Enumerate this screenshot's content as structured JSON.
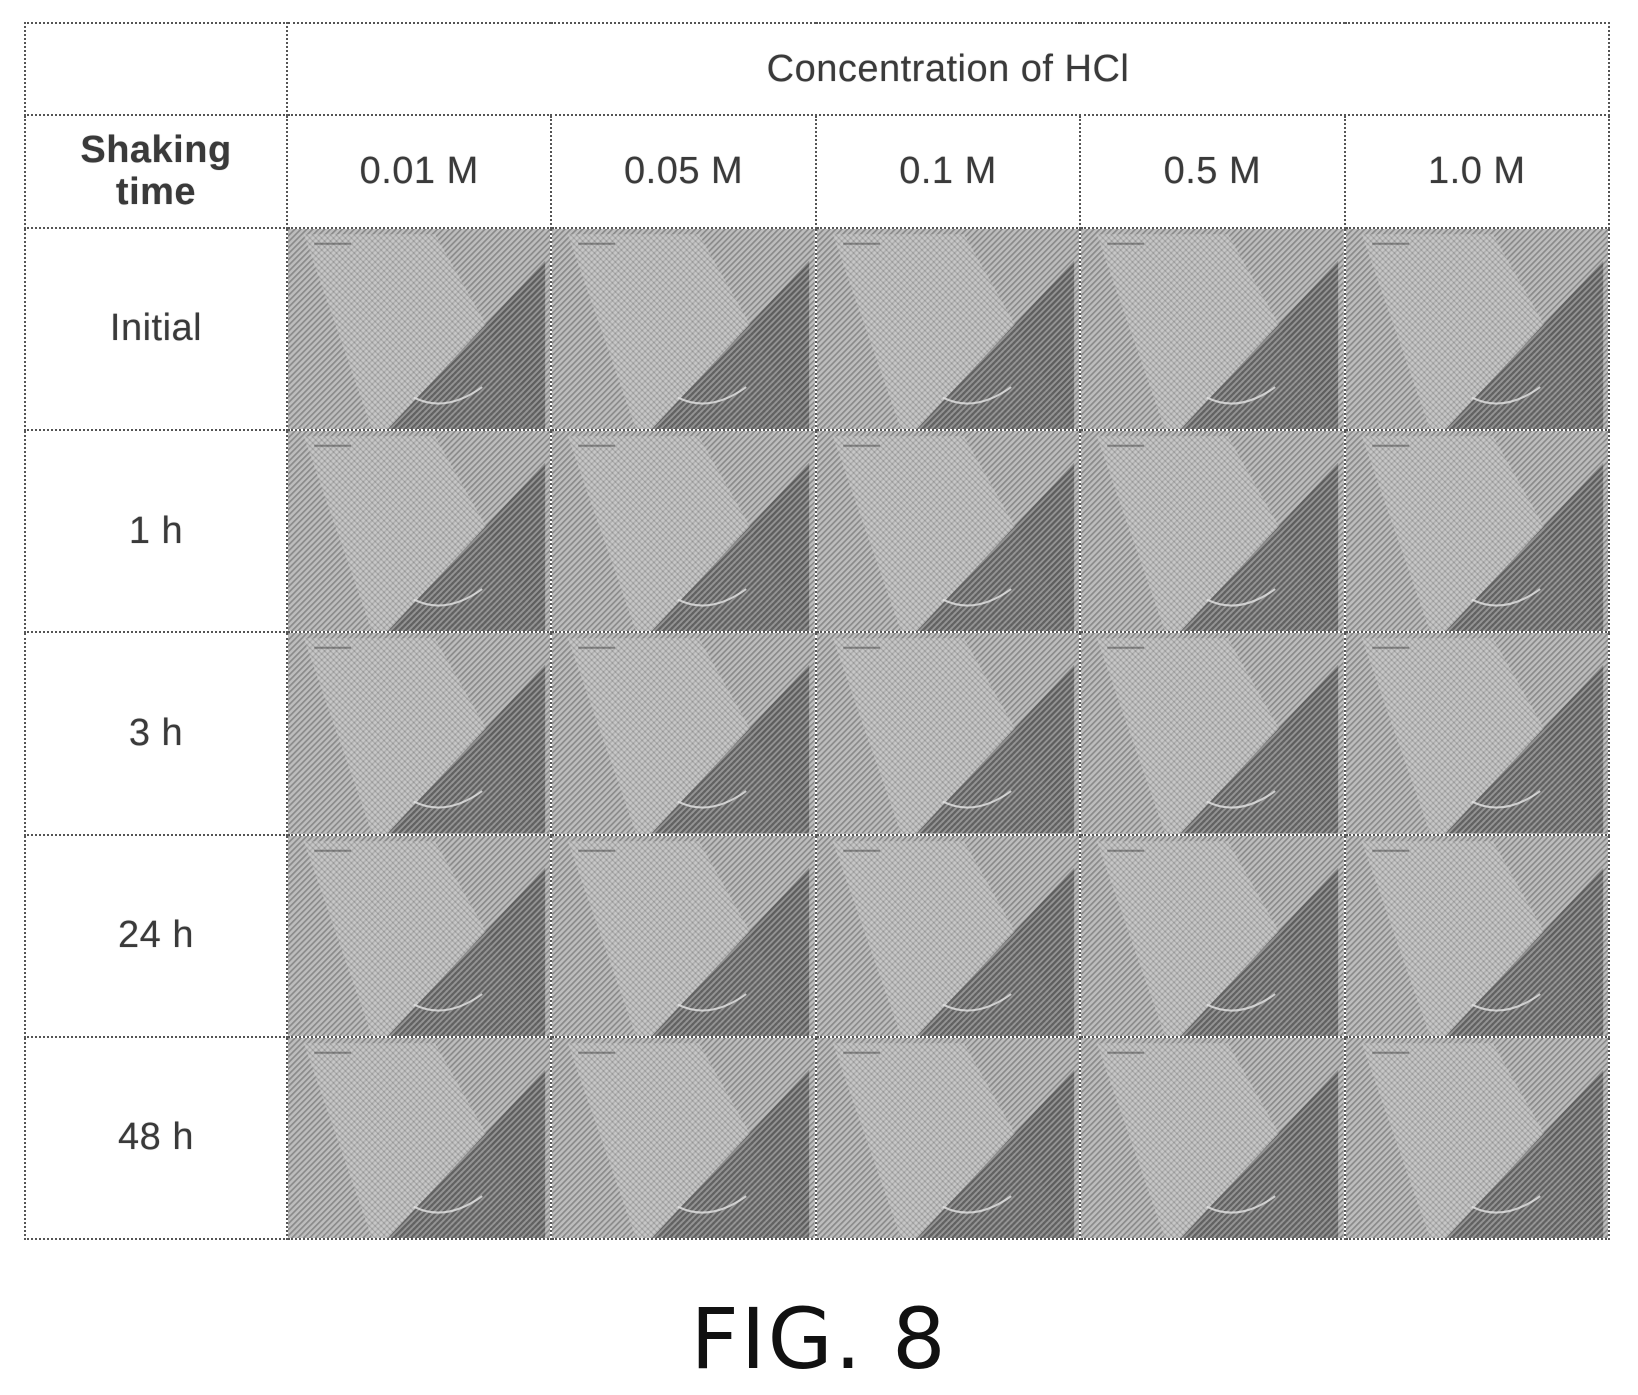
{
  "table": {
    "corner_label_line1": "Shaking",
    "corner_label_line2": "time",
    "group_header": "Concentration of HCl",
    "concentrations": [
      "0.01 M",
      "0.05 M",
      "0.1 M",
      "0.5 M",
      "1.0 M"
    ],
    "rows": [
      "Initial",
      "1 h",
      "3 h",
      "24 h",
      "48 h"
    ]
  },
  "caption": "FIG. 8"
}
